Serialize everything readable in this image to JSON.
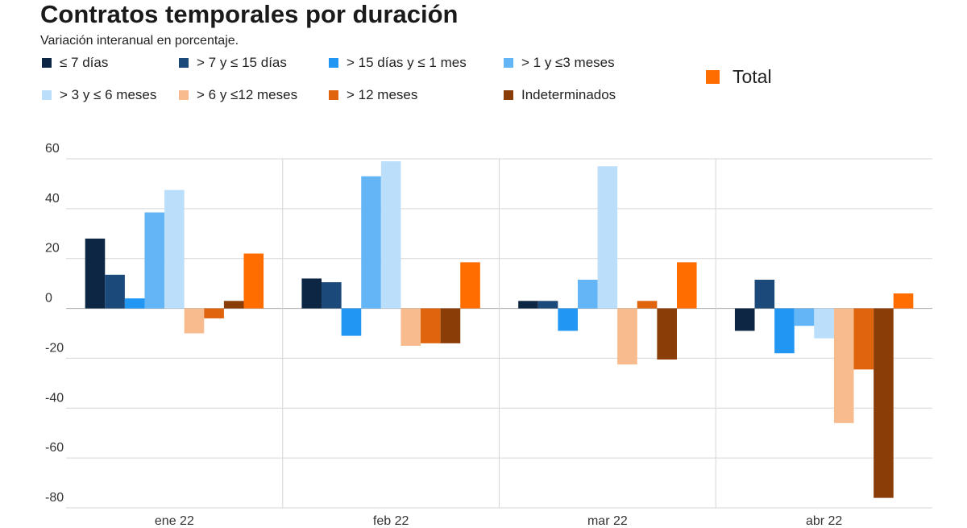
{
  "chart_data": {
    "type": "bar",
    "title": "Contratos temporales por duración",
    "subtitle": "Variación interanual en porcentaje.",
    "xlabel": "",
    "ylabel": "",
    "categories": [
      "ene 22",
      "feb 22",
      "mar 22",
      "abr 22"
    ],
    "ylim": [
      -80,
      60
    ],
    "yticks": [
      60,
      40,
      20,
      0,
      -20,
      -40,
      -60,
      -80
    ],
    "grid": true,
    "legend_position": "top",
    "series": [
      {
        "name": "≤ 7 días",
        "color": "#0d2644",
        "values": [
          28,
          12,
          3,
          -9
        ]
      },
      {
        "name": "> 7 y ≤ 15 días",
        "color": "#1b4a7a",
        "values": [
          13.5,
          10.5,
          3,
          11.5
        ]
      },
      {
        "name": "> 15 días y ≤ 1 mes",
        "color": "#2196f3",
        "values": [
          4,
          -11,
          -9,
          -18
        ]
      },
      {
        "name": "> 1 y ≤3 meses",
        "color": "#64b5f6",
        "values": [
          38.5,
          53,
          11.5,
          -7
        ]
      },
      {
        "name": "> 3 y ≤ 6 meses",
        "color": "#bbdefb",
        "values": [
          47.5,
          59,
          57,
          -12
        ]
      },
      {
        "name": "> 6 y ≤12 meses",
        "color": "#f8bb8d",
        "values": [
          -10,
          -15,
          -22.5,
          -46
        ]
      },
      {
        "name": "> 12 meses",
        "color": "#e0640e",
        "values": [
          -4,
          -14,
          3,
          -24.5
        ]
      },
      {
        "name": "Indeterminados",
        "color": "#8b3d08",
        "values": [
          3,
          -14,
          -20.5,
          -76
        ]
      },
      {
        "name": "Total",
        "color": "#ff6d00",
        "values": [
          22,
          18.5,
          18.5,
          6
        ]
      }
    ]
  }
}
